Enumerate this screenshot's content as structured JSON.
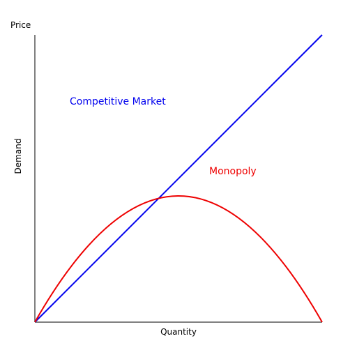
{
  "diagram": {
    "top_label": "Price",
    "y_axis_label": "Demand",
    "x_axis_label": "Quantity"
  },
  "curves": {
    "competitive": {
      "label": "Competitive Market",
      "color": "#0000ee",
      "shape": "straight line rising from origin"
    },
    "monopoly": {
      "label": "Monopoly",
      "color": "#ee0000",
      "shape": "inverted parabola from origin back to axis"
    }
  },
  "axis_color": "#555555"
}
